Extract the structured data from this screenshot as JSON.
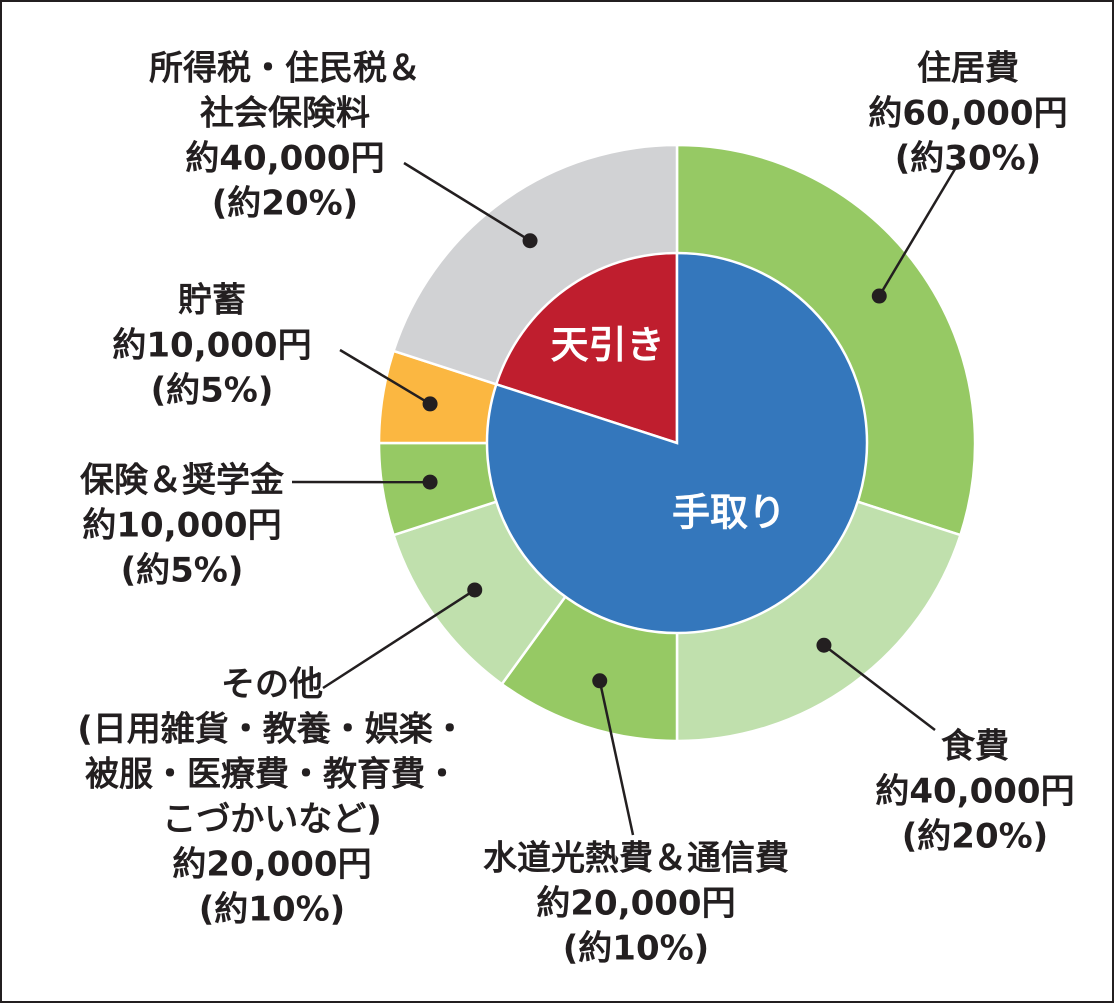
{
  "chart_data": {
    "type": "pie",
    "inner_ring": [
      {
        "label": "天引き",
        "value": 20,
        "color": "#bf1e2e"
      },
      {
        "label": "手取り",
        "value": 80,
        "color": "#3477bc"
      }
    ],
    "outer_ring": [
      {
        "lines": [
          "住居費"
        ],
        "amount": "約60,000円",
        "percent_label": "(約30%)",
        "value": 30,
        "color": "#96c964"
      },
      {
        "lines": [
          "食費"
        ],
        "amount": "約40,000円",
        "percent_label": "(約20%)",
        "value": 20,
        "color": "#c0e0ad"
      },
      {
        "lines": [
          "水道光熱費＆通信費"
        ],
        "amount": "約20,000円",
        "percent_label": "(約10%)",
        "value": 10,
        "color": "#96c964"
      },
      {
        "lines": [
          "その他",
          "(日用雑貨・教養・娯楽・",
          "被服・医療費・教育費・",
          "こづかいなど)"
        ],
        "amount": "約20,000円",
        "percent_label": "(約10%)",
        "value": 10,
        "color": "#c0e0ad"
      },
      {
        "lines": [
          "保険＆奨学金"
        ],
        "amount": "約10,000円",
        "percent_label": "(約5%)",
        "value": 5,
        "color": "#96c964"
      },
      {
        "lines": [
          "貯蓄"
        ],
        "amount": "約10,000円",
        "percent_label": "(約5%)",
        "value": 5,
        "color": "#fbb741"
      },
      {
        "lines": [
          "所得税・住民税＆",
          "社会保険料"
        ],
        "amount": "約40,000円",
        "percent_label": "(約20%)",
        "value": 20,
        "color": "#d1d2d4"
      }
    ]
  }
}
